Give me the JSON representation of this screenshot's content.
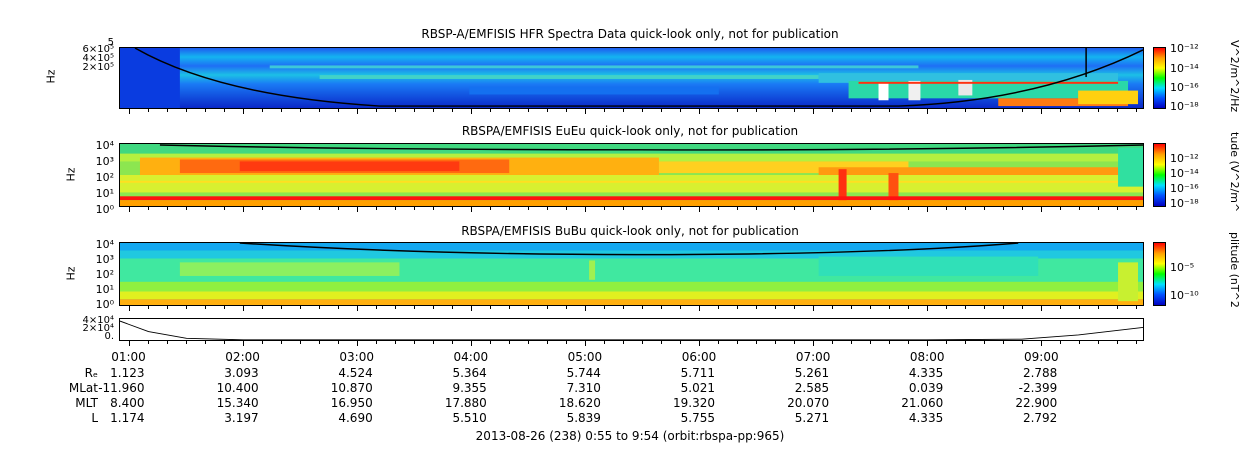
{
  "chart_data": [
    {
      "type": "heatmap",
      "title": "RBSP-A/EMFISIS  HFR Spectra Data quick-look only, not for publication",
      "ylabel": "Hz",
      "yticks": [
        "6×10⁵",
        "5",
        "4×10⁵",
        "2×10⁵"
      ],
      "colorbar_label": "V^2/m^2/Hz",
      "colorbar_ticks": [
        "10⁻¹²",
        "10⁻¹⁴",
        "10⁻¹⁶",
        "10⁻¹⁸"
      ],
      "colors": {
        "high": "#ff0000",
        "mid": "#00ff00",
        "low": "#0000ff"
      }
    },
    {
      "type": "heatmap",
      "title": "RBSPA/EMFISIS  EuEu quick-look only, not for publication",
      "ylabel": "Hz",
      "yticks": [
        "10⁴",
        "10³",
        "10²",
        "10¹",
        "10⁰"
      ],
      "colorbar_label": "tude (V^2/m^",
      "colorbar_ticks": [
        "10⁻¹²",
        "10⁻¹⁴",
        "10⁻¹⁶",
        "10⁻¹⁸"
      ]
    },
    {
      "type": "heatmap",
      "title": "RBSPA/EMFISIS  BuBu quick-look only, not for publication",
      "ylabel": "Hz",
      "yticks": [
        "10⁴",
        "10³",
        "10²",
        "10¹",
        "10⁰"
      ],
      "colorbar_label": "plitude (nT^2",
      "colorbar_ticks": [
        "10⁻⁵",
        "10⁻¹⁰"
      ]
    },
    {
      "type": "line",
      "title": "",
      "yticks": [
        "4×10⁴",
        "2×10⁴",
        "0."
      ],
      "x": [
        "00:55",
        "01:10",
        "01:30",
        "02:00",
        "08:00",
        "08:50",
        "09:20",
        "09:54"
      ],
      "y": [
        45000,
        20000,
        4000,
        500,
        500,
        2000,
        12000,
        30000
      ]
    }
  ],
  "time_axis": {
    "labels": [
      "01:00",
      "02:00",
      "03:00",
      "04:00",
      "05:00",
      "06:00",
      "07:00",
      "08:00",
      "09:00"
    ]
  },
  "ephemeris": {
    "rows": [
      {
        "name": "Rₑ",
        "values": [
          "1.123",
          "3.093",
          "4.524",
          "5.364",
          "5.744",
          "5.711",
          "5.261",
          "4.335",
          "2.788"
        ]
      },
      {
        "name": "MLat",
        "values": [
          "-11.960",
          "10.400",
          "10.870",
          "9.355",
          "7.310",
          "5.021",
          "2.585",
          "0.039",
          "-2.399"
        ]
      },
      {
        "name": "MLT",
        "values": [
          "8.400",
          "15.340",
          "16.950",
          "17.880",
          "18.620",
          "19.320",
          "20.070",
          "21.060",
          "22.900"
        ]
      },
      {
        "name": "L",
        "values": [
          "1.174",
          "3.197",
          "4.690",
          "5.510",
          "5.839",
          "5.755",
          "5.271",
          "4.335",
          "2.792"
        ]
      }
    ]
  },
  "footer": "2013-08-26 (238) 0:55 to 9:54 (orbit:rbspa-pp:965)"
}
